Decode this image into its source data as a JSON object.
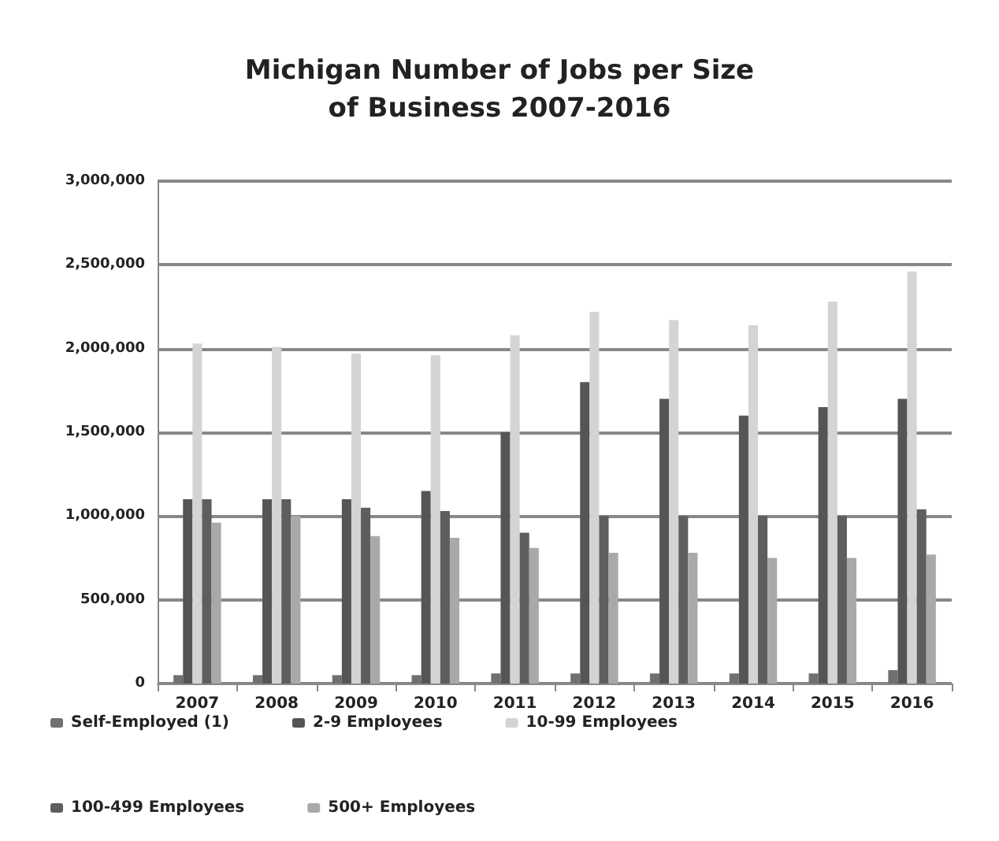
{
  "chart_data": {
    "type": "bar",
    "title": "Michigan Number of Jobs per Size\nof Business 2007-2016",
    "categories": [
      "2007",
      "2008",
      "2009",
      "2010",
      "2011",
      "2012",
      "2013",
      "2014",
      "2015",
      "2016"
    ],
    "series": [
      {
        "name": "Self-Employed (1)",
        "color": "#707070",
        "values": [
          50000,
          50000,
          50000,
          50000,
          60000,
          60000,
          60000,
          60000,
          60000,
          80000
        ]
      },
      {
        "name": "2-9 Employees",
        "color": "#555555",
        "values": [
          1100000,
          1100000,
          1100000,
          1150000,
          1500000,
          1800000,
          1700000,
          1600000,
          1650000,
          1700000
        ]
      },
      {
        "name": "10-99 Employees",
        "color": "#d4d4d4",
        "values": [
          2030000,
          2010000,
          1970000,
          1960000,
          2080000,
          2220000,
          2170000,
          2140000,
          2280000,
          2460000
        ]
      },
      {
        "name": "100-499 Employees",
        "color": "#5e5e5e",
        "values": [
          1100000,
          1100000,
          1050000,
          1030000,
          900000,
          1000000,
          1000000,
          1000000,
          1000000,
          1040000
        ]
      },
      {
        "name": "500+ Employees",
        "color": "#a9a9a9",
        "values": [
          960000,
          1000000,
          880000,
          870000,
          810000,
          780000,
          780000,
          750000,
          750000,
          770000
        ]
      }
    ],
    "ylim": [
      0,
      3000000
    ],
    "yticks": [
      0,
      {
        "value": 500000,
        "label": "500,000"
      },
      {
        "value": 1000000,
        "label": "1,000,000"
      },
      {
        "value": 1500000,
        "label": "1,500,000"
      },
      {
        "value": 2000000,
        "label": "2,000,000"
      },
      {
        "value": 2500000,
        "label": "2,500,000"
      },
      {
        "value": 3000000,
        "label": "3,000,000"
      }
    ],
    "grid": "y",
    "legend": "bottom"
  }
}
